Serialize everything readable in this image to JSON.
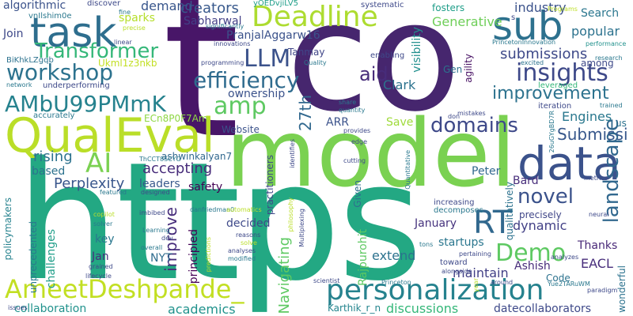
{
  "words": [
    {
      "text": "co",
      "color": "#46266e"
    },
    {
      "text": "t",
      "color": "#481668"
    },
    {
      "text": "https",
      "color": "#23a883"
    },
    {
      "text": "model",
      "color": "#7ad151"
    },
    {
      "text": "QualEval",
      "color": "#bade28"
    },
    {
      "text": "data",
      "color": "#3b528b"
    },
    {
      "text": "task",
      "color": "#2e6e8e"
    },
    {
      "text": "sub",
      "color": "#2d718e"
    },
    {
      "text": "Deadline",
      "color": "#addc30"
    },
    {
      "text": "personalization",
      "color": "#26828e"
    },
    {
      "text": "AmeetDeshpande_",
      "color": "#c2df23"
    },
    {
      "text": "AMbU99PMmK",
      "color": "#26828e"
    },
    {
      "text": "efficiency",
      "color": "#2f6b8e"
    },
    {
      "text": "LLM",
      "color": "#3b528b"
    },
    {
      "text": "workshop",
      "color": "#2c728e"
    },
    {
      "text": "amp",
      "color": "#5ec962"
    },
    {
      "text": "insights",
      "color": "#3e4989"
    },
    {
      "text": "Transformer",
      "color": "#35b779"
    },
    {
      "text": "AI",
      "color": "#7ad151"
    },
    {
      "text": "RT",
      "color": "#31688e"
    },
    {
      "text": "Demo",
      "color": "#5ec962"
    },
    {
      "text": "improvement",
      "color": "#2c728e"
    },
    {
      "text": "novel",
      "color": "#3b528b"
    },
    {
      "text": "domains",
      "color": "#3e4989"
    },
    {
      "text": "landscape",
      "color": "#31688e"
    },
    {
      "text": "aid",
      "color": "#472c7a"
    },
    {
      "text": "Submissi",
      "color": "#38588c"
    },
    {
      "text": "27th",
      "color": "#31688e"
    },
    {
      "text": "improve",
      "color": "#472d7b"
    },
    {
      "text": "submissions",
      "color": "#3e4989"
    },
    {
      "text": "Perplexity",
      "color": "#39568c"
    },
    {
      "text": "creators",
      "color": "#38598c"
    },
    {
      "text": "rising",
      "color": "#2c728e"
    },
    {
      "text": "accepting",
      "color": "#472c7a"
    },
    {
      "text": "Generative",
      "color": "#6ece58"
    },
    {
      "text": "dynamic",
      "color": "#424086"
    },
    {
      "text": "popular",
      "color": "#2c728e"
    },
    {
      "text": "PranjalAggarw16",
      "color": "#3b528b"
    },
    {
      "text": "Navigating",
      "color": "#5ec962"
    },
    {
      "text": "datecollaborators",
      "color": "#3e4989"
    },
    {
      "text": "discussions",
      "color": "#35b779"
    },
    {
      "text": "collaboration",
      "color": "#20928c"
    },
    {
      "text": "academics",
      "color": "#20928c"
    },
    {
      "text": "Engines",
      "color": "#2a788e"
    },
    {
      "text": "maintain",
      "color": "#424086"
    },
    {
      "text": "Ashish",
      "color": "#472c7a"
    },
    {
      "text": "Search",
      "color": "#2a768e"
    },
    {
      "text": "industry",
      "color": "#3b528b"
    },
    {
      "text": "extend",
      "color": "#2c728e"
    },
    {
      "text": "startups",
      "color": "#2a768e"
    },
    {
      "text": "Clark",
      "color": "#2c728e"
    },
    {
      "text": "Thanks",
      "color": "#482878"
    },
    {
      "text": "EACL",
      "color": "#472d7b"
    },
    {
      "text": "visibility",
      "color": "#218f8d"
    },
    {
      "text": "demand",
      "color": "#39568c"
    },
    {
      "text": "ownership",
      "color": "#3b528b"
    },
    {
      "text": "ARR",
      "color": "#3b528b"
    },
    {
      "text": "January",
      "color": "#46337e"
    },
    {
      "text": "Peter",
      "color": "#31688e"
    },
    {
      "text": "Bard",
      "color": "#472d7b"
    },
    {
      "text": "decided",
      "color": "#3e4989"
    },
    {
      "text": "principled",
      "color": "#440154"
    },
    {
      "text": "key",
      "color": "#2a778e"
    },
    {
      "text": "NYT",
      "color": "#2f6c8e"
    },
    {
      "text": "Jan",
      "color": "#46307e"
    },
    {
      "text": "leaders",
      "color": "#38598c"
    },
    {
      "text": "challenges",
      "color": "#1f9e89"
    },
    {
      "text": "based",
      "color": "#2c728e"
    },
    {
      "text": "algorithmic",
      "color": "#3b528b"
    },
    {
      "text": "Join",
      "color": "#3e4989"
    },
    {
      "text": "Sabharwal",
      "color": "#424086"
    },
    {
      "text": "Karthik_r_n",
      "color": "#25858e"
    },
    {
      "text": "Rajpurohit",
      "color": "#5ec962"
    },
    {
      "text": "Tanmay",
      "color": "#404688"
    },
    {
      "text": "Gen",
      "color": "#2c728e"
    },
    {
      "text": "Save",
      "color": "#9fda3a"
    },
    {
      "text": "fosters",
      "color": "#1f9e89"
    },
    {
      "text": "ashwinkalyan7",
      "color": "#31688e"
    },
    {
      "text": "sparks",
      "color": "#b5de2b"
    },
    {
      "text": "Website",
      "color": "#3b528b"
    },
    {
      "text": "Given",
      "color": "#2e6f8e"
    },
    {
      "text": "practitioners",
      "color": "#3e4989"
    },
    {
      "text": "safety",
      "color": "#440154"
    },
    {
      "text": "unprecedented",
      "color": "#2a788e"
    },
    {
      "text": "policymakers",
      "color": "#26828e"
    },
    {
      "text": "us",
      "color": "#2c728e"
    },
    {
      "text": "wonderful",
      "color": "#2c728e"
    },
    {
      "text": "Code",
      "color": "#2c728e"
    },
    {
      "text": "agility",
      "color": "#471063"
    },
    {
      "text": "qualitatively",
      "color": "#2c728e"
    },
    {
      "text": "decomposes",
      "color": "#2a788e"
    },
    {
      "text": "increasing",
      "color": "#3e4989"
    },
    {
      "text": "precisely",
      "color": "#404688"
    },
    {
      "text": "Ukml1z3nkb",
      "color": "#c2df23"
    },
    {
      "text": "ECn8P0F7Am",
      "color": "#8fd744"
    },
    {
      "text": "vnIlshim0e",
      "color": "#2a788e"
    },
    {
      "text": "discover",
      "color": "#3e4989"
    },
    {
      "text": "creators",
      "color": "#440154"
    },
    {
      "text": "fine",
      "color": "#2a788e"
    },
    {
      "text": "yOEDvjiLV5",
      "color": "#1f9e89"
    },
    {
      "text": "systematic",
      "color": "#3e4989"
    },
    {
      "text": "significantly",
      "color": "#2a788e"
    },
    {
      "text": "Programs",
      "color": "#bddf26"
    },
    {
      "text": "PrincetonInnovation",
      "color": "#2a788e"
    },
    {
      "text": "performance",
      "color": "#21918c"
    },
    {
      "text": "research",
      "color": "#2a788e"
    },
    {
      "text": "among",
      "color": "#3e4989"
    },
    {
      "text": "excited",
      "color": "#2c728e"
    },
    {
      "text": "leveraged",
      "color": "#35b779"
    },
    {
      "text": "enabling",
      "color": "#3e4989"
    },
    {
      "text": "Quality",
      "color": "#2a788e"
    },
    {
      "text": "innovations",
      "color": "#3e4989"
    },
    {
      "text": "programming",
      "color": "#3e4989"
    },
    {
      "text": "BiKhkLZgqb",
      "color": "#2c728e"
    },
    {
      "text": "network",
      "color": "#2a788e"
    },
    {
      "text": "underperforming",
      "color": "#3e4989"
    },
    {
      "text": "linear",
      "color": "#3e4989"
    },
    {
      "text": "precise",
      "color": "#bade28"
    },
    {
      "text": "accurately",
      "color": "#2a788e"
    },
    {
      "text": "iteration",
      "color": "#3e4989"
    },
    {
      "text": "trained",
      "color": "#2a788e"
    },
    {
      "text": "share",
      "color": "#2a788e"
    },
    {
      "text": "quantity",
      "color": "#2a788e"
    },
    {
      "text": "mistakes",
      "color": "#3e4989"
    },
    {
      "text": "don",
      "color": "#3e4989"
    },
    {
      "text": "provides",
      "color": "#3e4989"
    },
    {
      "text": "edge",
      "color": "#3e4989"
    },
    {
      "text": "cutting",
      "color": "#3e4989"
    },
    {
      "text": "26uGYgBD7R",
      "color": "#2a788e"
    },
    {
      "text": "metrics",
      "color": "#3e4989"
    },
    {
      "text": "ThCCT8SCYG",
      "color": "#2a788e"
    },
    {
      "text": "identifies",
      "color": "#3e4989"
    },
    {
      "text": "Quantitative",
      "color": "#2a788e"
    },
    {
      "text": "featured",
      "color": "#2a788e"
    },
    {
      "text": "copilot",
      "color": "#bade28"
    },
    {
      "text": "solver",
      "color": "#2a788e"
    },
    {
      "text": "imbibed",
      "color": "#3e4989"
    },
    {
      "text": "danfriedman0",
      "color": "#2a788e"
    },
    {
      "text": "designed",
      "color": "#3e4989"
    },
    {
      "text": "automatics",
      "color": "#bade28"
    },
    {
      "text": "philosophy",
      "color": "#bade28"
    },
    {
      "text": "Multiplexing",
      "color": "#3e4989"
    },
    {
      "text": "Learning",
      "color": "#2a788e"
    },
    {
      "text": "dev",
      "color": "#3e4989"
    },
    {
      "text": "overall",
      "color": "#2a788e"
    },
    {
      "text": "grained",
      "color": "#3e4989"
    },
    {
      "text": "predictions",
      "color": "#bade28"
    },
    {
      "text": "reasons",
      "color": "#3e4989"
    },
    {
      "text": "solve",
      "color": "#bade28"
    },
    {
      "text": "analyses",
      "color": "#3e4989"
    },
    {
      "text": "modified",
      "color": "#2a788e"
    },
    {
      "text": "lifecycle",
      "color": "#3e4989"
    },
    {
      "text": "tons",
      "color": "#2a788e"
    },
    {
      "text": "pertaining",
      "color": "#3e4989"
    },
    {
      "text": "toward",
      "color": "#3e4989"
    },
    {
      "text": "alongside",
      "color": "#3e4989"
    },
    {
      "text": "scientist",
      "color": "#3e4989"
    },
    {
      "text": "Princeton",
      "color": "#2a788e"
    },
    {
      "text": "year",
      "color": "#bade28"
    },
    {
      "text": "around",
      "color": "#3e4989"
    },
    {
      "text": "Yue2TARuWM",
      "color": "#2a788e"
    },
    {
      "text": "paradigm",
      "color": "#3e4989"
    },
    {
      "text": "issues",
      "color": "#3e4989"
    },
    {
      "text": "neural",
      "color": "#3e4989"
    },
    {
      "text": "analyzes",
      "color": "#3e4989"
    },
    {
      "text": "s",
      "color": "#3e4989"
    }
  ]
}
